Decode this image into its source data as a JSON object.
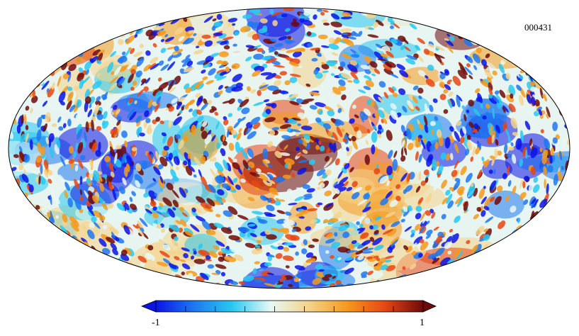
{
  "map": {
    "id": "000431",
    "projection": "mollweide",
    "colormap": [
      "#0a14e6",
      "#1e78f0",
      "#28c8f0",
      "#e6f8f4",
      "#f4d48c",
      "#f59a1e",
      "#e64614",
      "#6e0a0a"
    ]
  },
  "colorbar": {
    "min_label": "-1",
    "max_label": "1",
    "min": -1,
    "max": 1,
    "ticks": 9
  }
}
